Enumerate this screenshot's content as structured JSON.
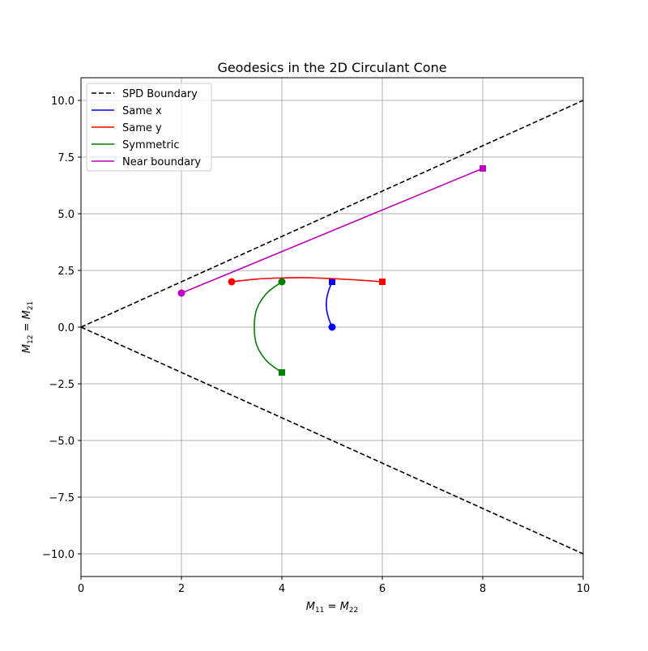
{
  "chart_data": {
    "type": "line",
    "title": "Geodesics in the 2D Circulant Cone",
    "xlabel": "M",
    "xlabel_parts": {
      "a": "M",
      "a_sub": "11",
      "eq": " = ",
      "b": "M",
      "b_sub": "22"
    },
    "ylabel_parts": {
      "a": "M",
      "a_sub": "12",
      "eq": " = ",
      "b": "M",
      "b_sub": "21"
    },
    "xlim": [
      0,
      10
    ],
    "ylim": [
      -11,
      11
    ],
    "xticks": [
      0,
      2,
      4,
      6,
      8,
      10
    ],
    "xtick_labels": [
      "0",
      "2",
      "4",
      "6",
      "8",
      "10"
    ],
    "yticks": [
      -10,
      -7.5,
      -5,
      -2.5,
      0,
      2.5,
      5,
      7.5,
      10
    ],
    "ytick_labels": [
      "−10.0",
      "−7.5",
      "−5.0",
      "−2.5",
      "0.0",
      "2.5",
      "5.0",
      "7.5",
      "10.0"
    ],
    "grid": true,
    "legend_placement": "upper-left",
    "series": [
      {
        "name": "SPD Boundary",
        "color": "#000000",
        "style": "dashed",
        "markers": false,
        "segments": [
          [
            [
              0,
              0
            ],
            [
              10,
              10
            ]
          ],
          [
            [
              0,
              0
            ],
            [
              10,
              -10
            ]
          ]
        ]
      },
      {
        "name": "Same x",
        "color": "#0000ff",
        "style": "solid",
        "markers": true,
        "points": [
          [
            5,
            0
          ],
          [
            4.93,
            0.4
          ],
          [
            4.89,
            0.8
          ],
          [
            4.89,
            1.2
          ],
          [
            4.93,
            1.6
          ],
          [
            5,
            2
          ]
        ]
      },
      {
        "name": "Same y",
        "color": "#ff0000",
        "style": "solid",
        "markers": true,
        "points": [
          [
            3,
            2
          ],
          [
            3.5,
            2.12
          ],
          [
            4,
            2.17
          ],
          [
            4.5,
            2.18
          ],
          [
            5,
            2.14
          ],
          [
            5.5,
            2.08
          ],
          [
            6,
            2
          ]
        ]
      },
      {
        "name": "Symmetric",
        "color": "#008000",
        "style": "solid",
        "markers": true,
        "points": [
          [
            4,
            2
          ],
          [
            3.7,
            1.5
          ],
          [
            3.5,
            0.8
          ],
          [
            3.45,
            0
          ],
          [
            3.5,
            -0.8
          ],
          [
            3.7,
            -1.5
          ],
          [
            4,
            -2
          ]
        ]
      },
      {
        "name": "Near boundary",
        "color": "#bf00bf",
        "style": "solid",
        "markers": true,
        "points": [
          [
            2,
            1.5
          ],
          [
            8,
            7
          ]
        ]
      }
    ]
  }
}
